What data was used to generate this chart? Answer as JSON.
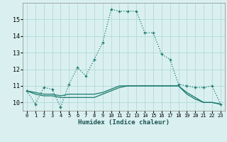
{
  "xlabel": "Humidex (Indice chaleur)",
  "x": [
    0,
    1,
    2,
    3,
    4,
    5,
    6,
    7,
    8,
    9,
    10,
    11,
    12,
    13,
    14,
    15,
    16,
    17,
    18,
    19,
    20,
    21,
    22,
    23
  ],
  "line1": [
    10.7,
    9.9,
    10.9,
    10.8,
    9.7,
    11.1,
    12.1,
    11.6,
    12.6,
    13.6,
    15.6,
    15.5,
    15.5,
    15.5,
    14.2,
    14.2,
    12.9,
    12.6,
    11.1,
    11.0,
    10.9,
    10.9,
    11.0,
    9.9
  ],
  "line2": [
    10.7,
    10.5,
    10.4,
    10.4,
    10.3,
    10.3,
    10.3,
    10.3,
    10.3,
    10.5,
    10.7,
    10.9,
    11.0,
    11.0,
    11.0,
    11.0,
    11.0,
    11.0,
    11.0,
    10.6,
    10.3,
    10.0,
    10.0,
    9.9
  ],
  "line3": [
    10.7,
    10.6,
    10.5,
    10.5,
    10.4,
    10.5,
    10.5,
    10.5,
    10.5,
    10.6,
    10.8,
    11.0,
    11.0,
    11.0,
    11.0,
    11.0,
    11.0,
    11.0,
    11.0,
    10.5,
    10.2,
    10.0,
    10.0,
    9.9
  ],
  "line_color": "#1a7a6e",
  "bg_color": "#daf0f0",
  "grid_color": "#aad4d4",
  "ylim": [
    9.5,
    16.0
  ],
  "yticks": [
    10,
    11,
    12,
    13,
    14,
    15
  ],
  "xticks": [
    0,
    1,
    2,
    3,
    4,
    5,
    6,
    7,
    8,
    9,
    10,
    11,
    12,
    13,
    14,
    15,
    16,
    17,
    18,
    19,
    20,
    21,
    22,
    23
  ]
}
